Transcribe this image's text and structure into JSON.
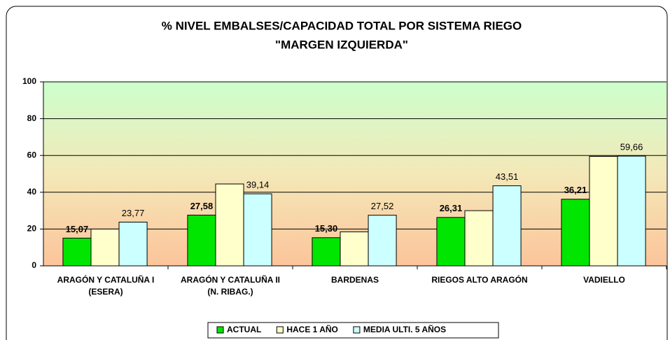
{
  "chart_data": {
    "type": "bar",
    "title": "% NIVEL EMBALSES/CAPACIDAD TOTAL POR SISTEMA  RIEGO",
    "subtitle": "\"MARGEN IZQUIERDA\"",
    "categories": [
      [
        "ARAGÓN Y CATALUÑA I",
        "(ESERA)"
      ],
      [
        "ARAGÓN Y CATALUÑA II",
        "(N. RIBAG.)"
      ],
      [
        "BARDENAS"
      ],
      [
        "RIEGOS ALTO ARAGÓN"
      ],
      [
        "VADIELLO"
      ]
    ],
    "series": [
      {
        "name": "ACTUAL",
        "color": "#00e600",
        "values": [
          15.07,
          27.58,
          15.3,
          26.31,
          36.21
        ],
        "value_labels": [
          "15,07",
          "27,58",
          "15,30",
          "26,31",
          "36,21"
        ]
      },
      {
        "name": "HACE 1 AÑO",
        "color": "#ffffcc",
        "values": [
          20,
          44.5,
          18.5,
          30,
          59.5
        ]
      },
      {
        "name": "MEDIA  ULTI. 5 AÑOS",
        "color": "#ccffff",
        "values": [
          23.77,
          39.14,
          27.52,
          43.51,
          59.66
        ],
        "value_labels": [
          "23,77",
          "39,14",
          "27,52",
          "43,51",
          "59,66"
        ]
      }
    ],
    "ylim": [
      0,
      100
    ],
    "yticks": [
      0,
      20,
      40,
      60,
      80,
      100
    ],
    "grid": true,
    "legend": "bottom"
  }
}
